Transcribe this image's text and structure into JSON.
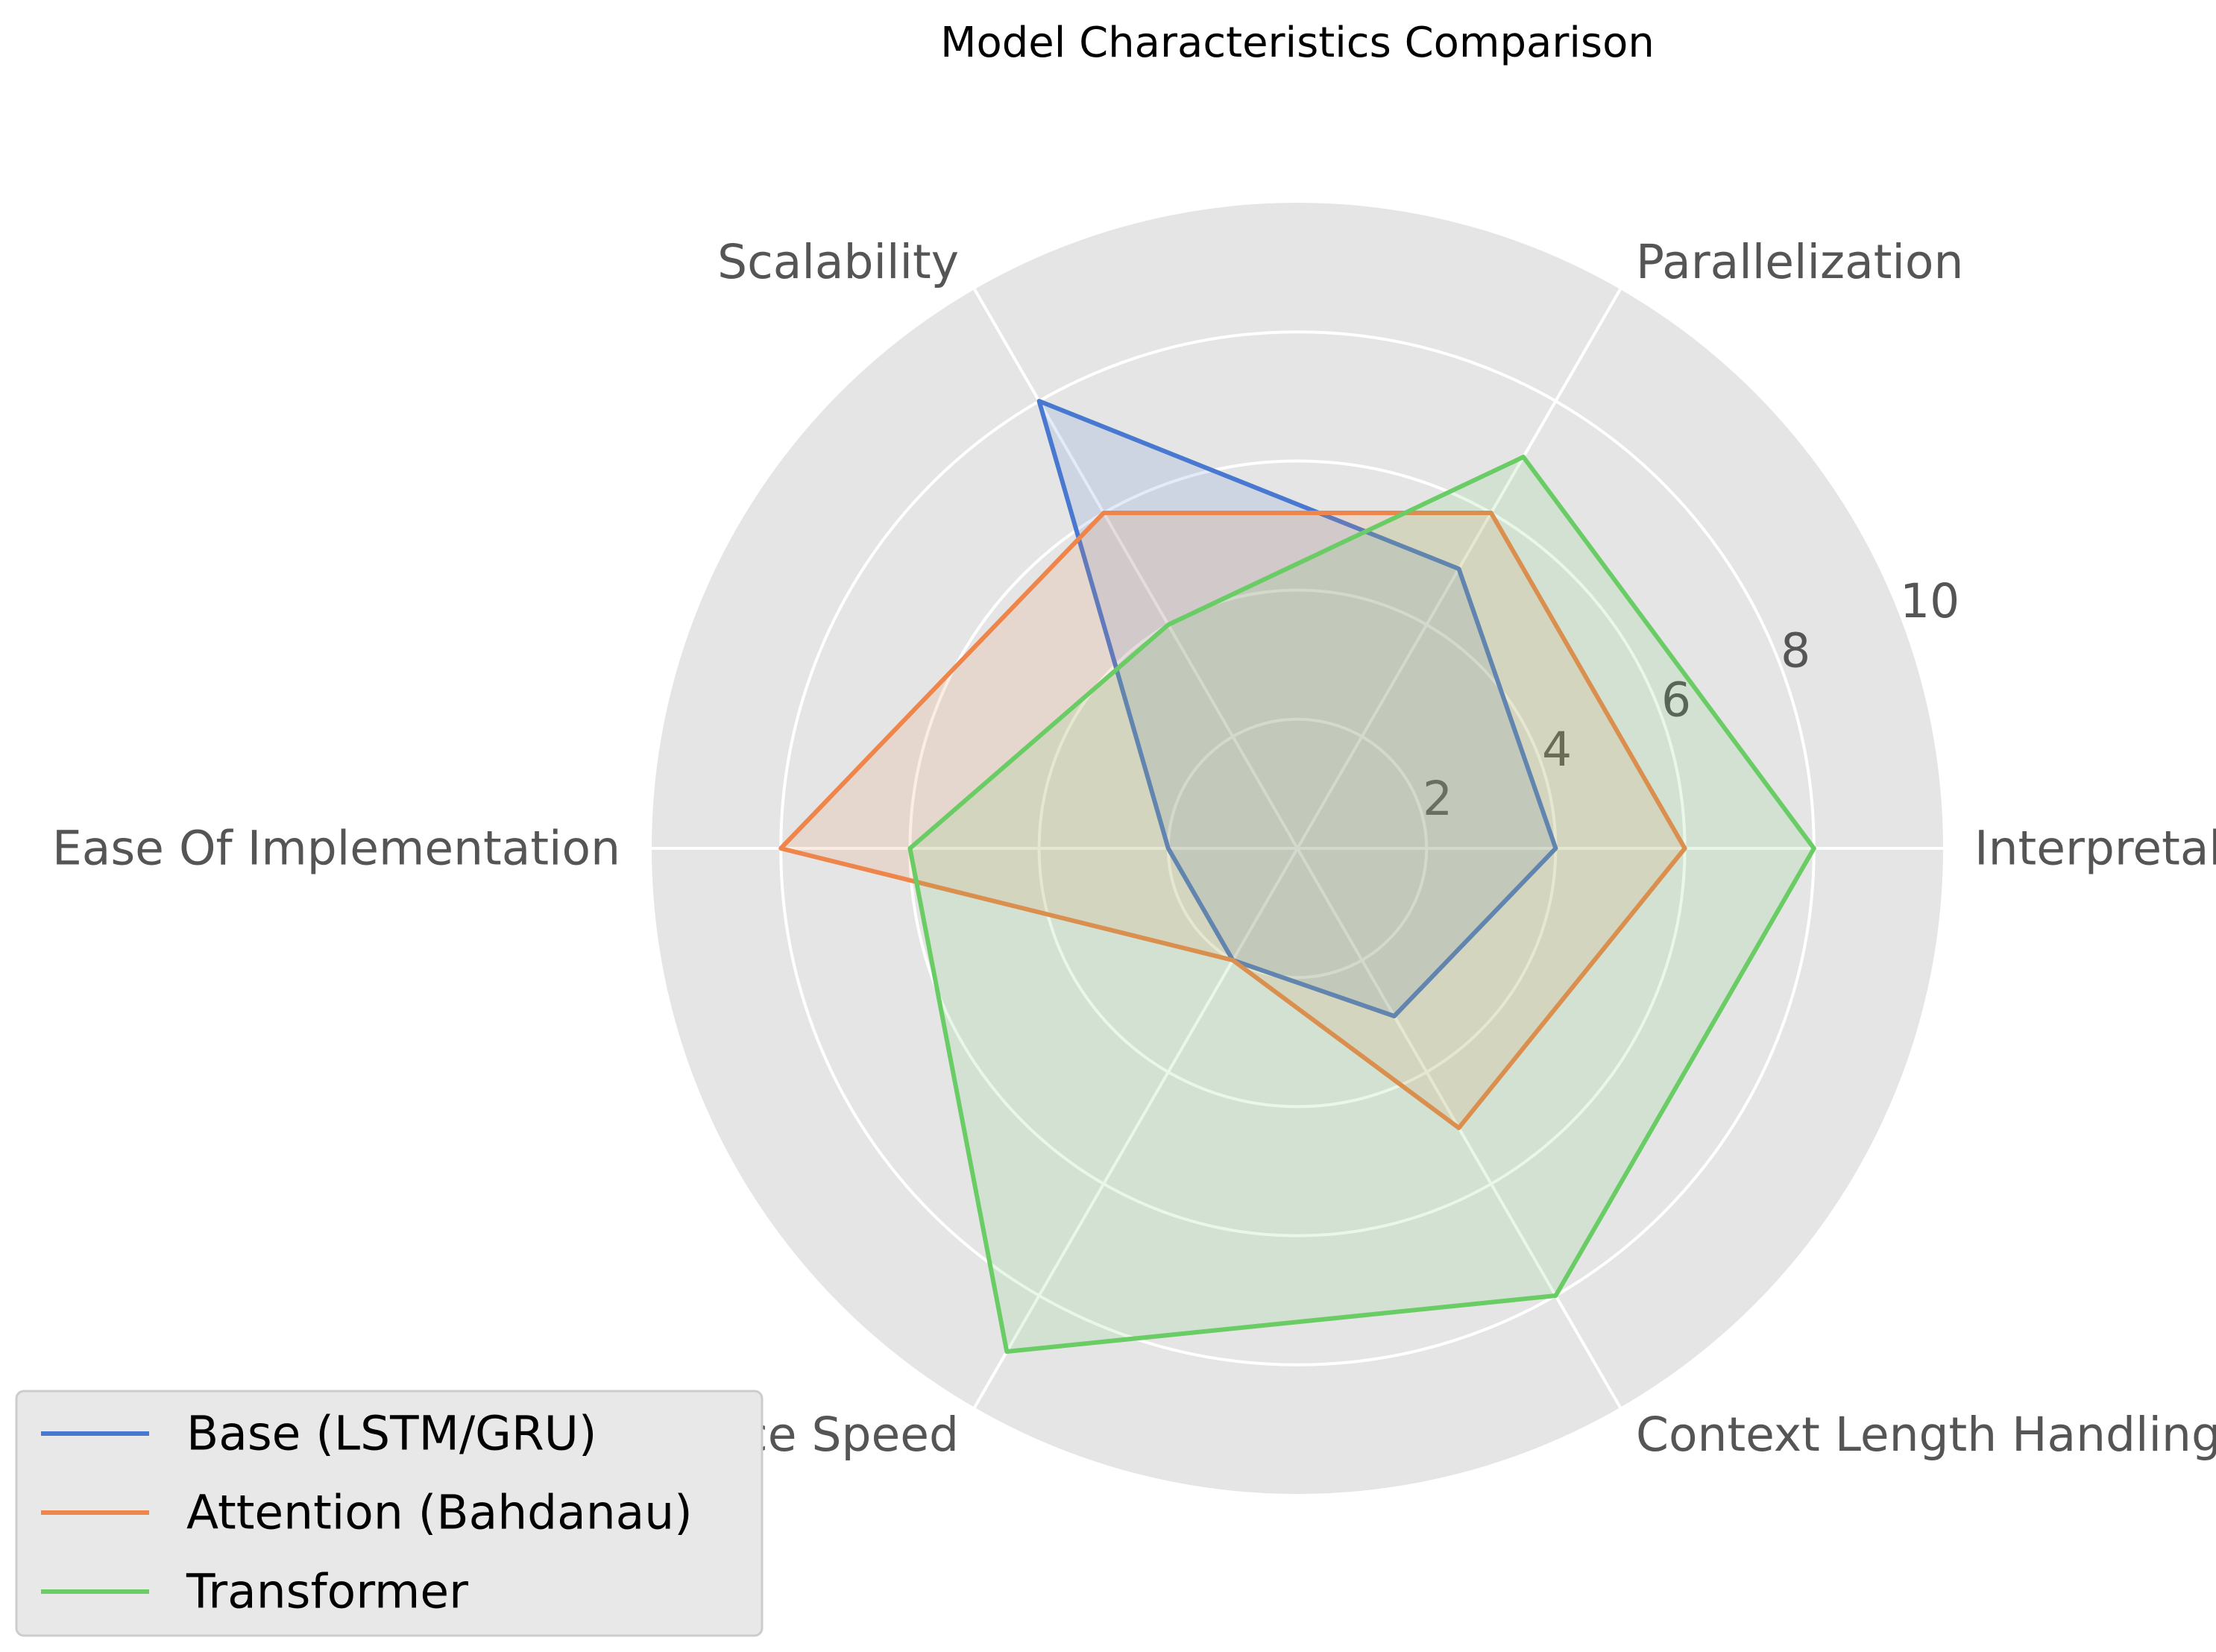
{
  "chart_data": {
    "type": "radar",
    "title": "Model Characteristics Comparison",
    "categories": [
      "Interpretability",
      "Parallelization",
      "Scalability",
      "Ease Of Implementation",
      "Convergence Speed",
      "Context Length Handling"
    ],
    "series": [
      {
        "name": "Base (LSTM/GRU)",
        "color": "#4878d0",
        "values": [
          4,
          5,
          8,
          2,
          2,
          3
        ]
      },
      {
        "name": "Attention (Bahdanau)",
        "color": "#ee854a",
        "values": [
          6,
          6,
          6,
          8,
          2,
          5
        ]
      },
      {
        "name": "Transformer",
        "color": "#6acc64",
        "values": [
          8,
          7,
          4,
          6,
          9,
          8
        ]
      }
    ],
    "r_ticks": [
      2,
      4,
      6,
      8,
      10
    ],
    "r_range": [
      0,
      10
    ],
    "grid": true,
    "legend_position": "lower-left",
    "background_color": "#e5e5e5",
    "grid_color": "#ffffff"
  }
}
